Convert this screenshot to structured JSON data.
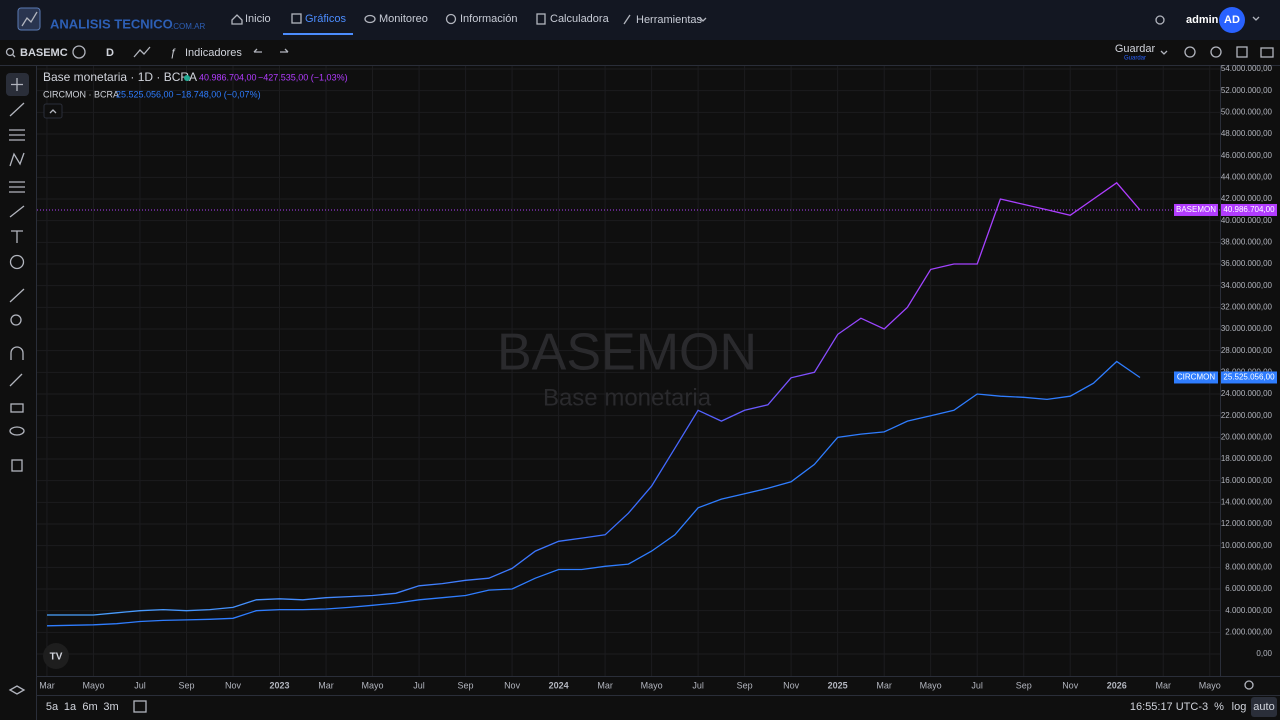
{
  "nav": {
    "brand": "ANALISIS TECNICO",
    "brand_suffix": ".COM.AR",
    "links": [
      "Inicio",
      "Gráficos",
      "Monitoreo",
      "Información",
      "Calculadora",
      "Herramientas"
    ],
    "user": "admin",
    "avatar": "AD"
  },
  "toolbar": {
    "symbol": "BASEMC",
    "interval": "D",
    "indicators": "Indicadores",
    "save": "Guardar",
    "save_sub": "Guardar"
  },
  "legend": {
    "line1": "Base monetaria · 1D · BCRA",
    "price1": "40.986.704,00",
    "change1": "−427.535,00 (−1,03%)",
    "line2": "CIRCMON · BCRA",
    "price2": "25.525.056,00",
    "change2": "−18.748,00 (−0,07%)"
  },
  "footer": {
    "ranges": [
      "5a",
      "1a",
      "6m",
      "3m"
    ],
    "time": "16:55:17 UTC-3",
    "modes": [
      "%",
      "log",
      "auto"
    ]
  },
  "chart_data": {
    "type": "line",
    "title": "BASEMON",
    "subtitle": "Base monetaria",
    "x": [
      "2022-03",
      "2022-04",
      "2022-05",
      "2022-06",
      "2022-07",
      "2022-08",
      "2022-09",
      "2022-10",
      "2022-11",
      "2022-12",
      "2023-01",
      "2023-02",
      "2023-03",
      "2023-04",
      "2023-05",
      "2023-06",
      "2023-07",
      "2023-08",
      "2023-09",
      "2023-10",
      "2023-11",
      "2023-12",
      "2024-01",
      "2024-02",
      "2024-03",
      "2024-04",
      "2024-05",
      "2024-06",
      "2024-07",
      "2024-08",
      "2024-09",
      "2024-10",
      "2024-11",
      "2024-12",
      "2025-01",
      "2025-02",
      "2025-03",
      "2025-04",
      "2025-05",
      "2025-06",
      "2025-07",
      "2025-08",
      "2025-09",
      "2025-10",
      "2025-11",
      "2025-12",
      "2026-01",
      "2026-02"
    ],
    "series": [
      {
        "name": "BASEMON",
        "color": "#b23cff",
        "values": [
          3600000,
          3600000,
          3600000,
          3800000,
          4000000,
          4100000,
          4000000,
          4100000,
          4300000,
          5000000,
          5100000,
          5000000,
          5200000,
          5300000,
          5400000,
          5600000,
          6300000,
          6500000,
          6800000,
          7000000,
          7900000,
          9500000,
          10400000,
          10700000,
          11000000,
          13000000,
          15500000,
          19000000,
          22500000,
          21500000,
          22500000,
          23000000,
          25500000,
          26000000,
          29500000,
          31000000,
          30000000,
          32000000,
          35500000,
          36000000,
          36000000,
          42000000,
          41500000,
          41000000,
          40500000,
          42000000,
          43500000,
          40986704
        ]
      },
      {
        "name": "CIRCMON",
        "color": "#2f7dff",
        "values": [
          2600000,
          2650000,
          2700000,
          2800000,
          3000000,
          3100000,
          3150000,
          3200000,
          3300000,
          4000000,
          4100000,
          4100000,
          4150000,
          4300000,
          4500000,
          4700000,
          5000000,
          5200000,
          5400000,
          5900000,
          6000000,
          7000000,
          7800000,
          7800000,
          8100000,
          8300000,
          9500000,
          11000000,
          13500000,
          14300000,
          14800000,
          15300000,
          15900000,
          17500000,
          20000000,
          20300000,
          20500000,
          21500000,
          22000000,
          22500000,
          24000000,
          23800000,
          23700000,
          23500000,
          23800000,
          25000000,
          27000000,
          25525056
        ]
      }
    ],
    "xlim": [
      "2022-02",
      "2026-06"
    ],
    "xticks": [
      {
        "value": "2022-03",
        "label": "Mar"
      },
      {
        "value": "2022-05",
        "label": "Mayo"
      },
      {
        "value": "2022-07",
        "label": "Jul"
      },
      {
        "value": "2022-09",
        "label": "Sep"
      },
      {
        "value": "2022-11",
        "label": "Nov"
      },
      {
        "value": "2023-01",
        "label": "2023"
      },
      {
        "value": "2023-03",
        "label": "Mar"
      },
      {
        "value": "2023-05",
        "label": "Mayo"
      },
      {
        "value": "2023-07",
        "label": "Jul"
      },
      {
        "value": "2023-09",
        "label": "Sep"
      },
      {
        "value": "2023-11",
        "label": "Nov"
      },
      {
        "value": "2024-01",
        "label": "2024"
      },
      {
        "value": "2024-03",
        "label": "Mar"
      },
      {
        "value": "2024-05",
        "label": "Mayo"
      },
      {
        "value": "2024-07",
        "label": "Jul"
      },
      {
        "value": "2024-09",
        "label": "Sep"
      },
      {
        "value": "2024-11",
        "label": "Nov"
      },
      {
        "value": "2025-01",
        "label": "2025"
      },
      {
        "value": "2025-03",
        "label": "Mar"
      },
      {
        "value": "2025-05",
        "label": "Mayo"
      },
      {
        "value": "2025-07",
        "label": "Jul"
      },
      {
        "value": "2025-09",
        "label": "Sep"
      },
      {
        "value": "2025-11",
        "label": "Nov"
      },
      {
        "value": "2026-01",
        "label": "2026"
      },
      {
        "value": "2026-03",
        "label": "Mar"
      },
      {
        "value": "2026-05",
        "label": "Mayo"
      }
    ],
    "ylim": [
      0,
      54000000
    ],
    "yticks": [
      {
        "value": 0,
        "label": "0,00"
      },
      {
        "value": 2000000,
        "label": "2.000.000,00"
      },
      {
        "value": 4000000,
        "label": "4.000.000,00"
      },
      {
        "value": 6000000,
        "label": "6.000.000,00"
      },
      {
        "value": 8000000,
        "label": "8.000.000,00"
      },
      {
        "value": 10000000,
        "label": "10.000.000,00"
      },
      {
        "value": 12000000,
        "label": "12.000.000,00"
      },
      {
        "value": 14000000,
        "label": "14.000.000,00"
      },
      {
        "value": 16000000,
        "label": "16.000.000,00"
      },
      {
        "value": 18000000,
        "label": "18.000.000,00"
      },
      {
        "value": 20000000,
        "label": "20.000.000,00"
      },
      {
        "value": 22000000,
        "label": "22.000.000,00"
      },
      {
        "value": 24000000,
        "label": "24.000.000,00"
      },
      {
        "value": 26000000,
        "label": "26.000.000,00"
      },
      {
        "value": 28000000,
        "label": "28.000.000,00"
      },
      {
        "value": 30000000,
        "label": "30.000.000,00"
      },
      {
        "value": 32000000,
        "label": "32.000.000,00"
      },
      {
        "value": 34000000,
        "label": "34.000.000,00"
      },
      {
        "value": 36000000,
        "label": "36.000.000,00"
      },
      {
        "value": 38000000,
        "label": "38.000.000,00"
      },
      {
        "value": 40000000,
        "label": "40.000.000,00"
      },
      {
        "value": 42000000,
        "label": "42.000.000,00"
      },
      {
        "value": 44000000,
        "label": "44.000.000,00"
      },
      {
        "value": 46000000,
        "label": "46.000.000,00"
      },
      {
        "value": 48000000,
        "label": "48.000.000,00"
      },
      {
        "value": 50000000,
        "label": "50.000.000,00"
      },
      {
        "value": 52000000,
        "label": "52.000.000,00"
      },
      {
        "value": 54000000,
        "label": "54.000.000,00"
      }
    ],
    "grid": true
  }
}
